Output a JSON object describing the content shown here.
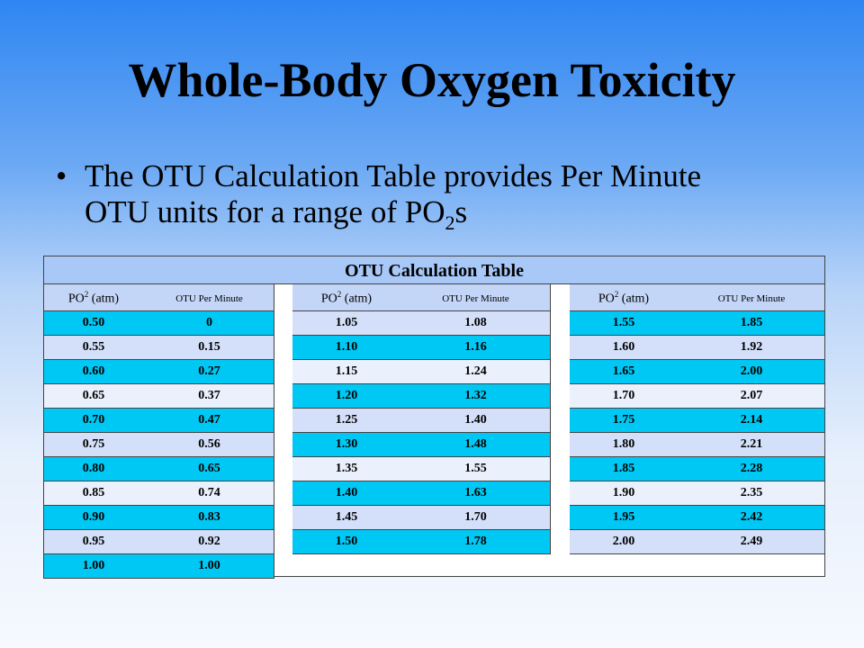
{
  "title": "Whole-Body Oxygen Toxicity",
  "bullet": {
    "icon": "bullet-dot",
    "line1": "The OTU Calculation Table provides Per Minute",
    "line2_prefix": "OTU units for a range of PO",
    "line2_sub": "2",
    "line2_suffix": "s"
  },
  "table": {
    "caption": "OTU Calculation Table",
    "header_po": "PO",
    "header_po_sub": "2",
    "header_po_unit": " (atm)",
    "header_otu": "OTU Per Minute",
    "colors": {
      "cyan": "#00c8f4",
      "light": "#d4e0fa",
      "caption": "#a8c8f8"
    },
    "groups": [
      {
        "rows": [
          [
            "0.50",
            "0"
          ],
          [
            "0.55",
            "0.15"
          ],
          [
            "0.60",
            "0.27"
          ],
          [
            "0.65",
            "0.37"
          ],
          [
            "0.70",
            "0.47"
          ],
          [
            "0.75",
            "0.56"
          ],
          [
            "0.80",
            "0.65"
          ],
          [
            "0.85",
            "0.74"
          ],
          [
            "0.90",
            "0.83"
          ],
          [
            "0.95",
            "0.92"
          ],
          [
            "1.00",
            "1.00"
          ]
        ]
      },
      {
        "rows": [
          [
            "1.05",
            "1.08"
          ],
          [
            "1.10",
            "1.16"
          ],
          [
            "1.15",
            "1.24"
          ],
          [
            "1.20",
            "1.32"
          ],
          [
            "1.25",
            "1.40"
          ],
          [
            "1.30",
            "1.48"
          ],
          [
            "1.35",
            "1.55"
          ],
          [
            "1.40",
            "1.63"
          ],
          [
            "1.45",
            "1.70"
          ],
          [
            "1.50",
            "1.78"
          ]
        ]
      },
      {
        "rows": [
          [
            "1.55",
            "1.85"
          ],
          [
            "1.60",
            "1.92"
          ],
          [
            "1.65",
            "2.00"
          ],
          [
            "1.70",
            "2.07"
          ],
          [
            "1.75",
            "2.14"
          ],
          [
            "1.80",
            "2.21"
          ],
          [
            "1.85",
            "2.28"
          ],
          [
            "1.90",
            "2.35"
          ],
          [
            "1.95",
            "2.42"
          ],
          [
            "2.00",
            "2.49"
          ]
        ]
      }
    ]
  }
}
